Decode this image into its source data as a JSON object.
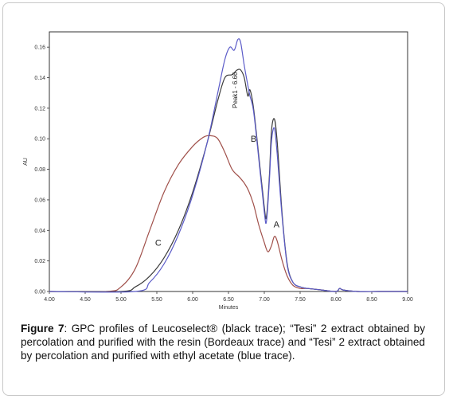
{
  "caption": {
    "label": "Figure 7",
    "text": ": GPC profiles of Leucoselect® (black trace); “Tesi” 2 extract obtained by percolation and purified with the resin (Bordeaux trace) and “Tesi” 2 extract obtained by percolation and purified with ethyl acetate (blue trace)."
  },
  "chart_data": {
    "type": "line",
    "xlabel": "Minutes",
    "ylabel": "AU",
    "xlim": [
      4.0,
      9.0
    ],
    "ylim": [
      0.0,
      0.17
    ],
    "xticks": [
      "4.00",
      "4.50",
      "5.00",
      "5.50",
      "6.00",
      "6.50",
      "7.00",
      "7.50",
      "8.00",
      "8.50",
      "9.00"
    ],
    "yticks": [
      "0.00",
      "0.02",
      "0.04",
      "0.06",
      "0.08",
      "0.10",
      "0.12",
      "0.14",
      "0.16"
    ],
    "grid": false,
    "series": [
      {
        "name": "A",
        "color": "#a0504a",
        "x": [
          4.0,
          4.8,
          5.0,
          5.2,
          5.4,
          5.6,
          5.8,
          6.0,
          6.15,
          6.25,
          6.35,
          6.45,
          6.55,
          6.65,
          6.72,
          6.78,
          6.85,
          6.92,
          7.0,
          7.05,
          7.1,
          7.14,
          7.18,
          7.25,
          7.32,
          7.4,
          7.5,
          7.6,
          7.8,
          8.0,
          8.05,
          8.1,
          8.3,
          8.6,
          9.0
        ],
        "y": [
          0.0,
          0.0,
          0.003,
          0.015,
          0.04,
          0.065,
          0.083,
          0.095,
          0.101,
          0.102,
          0.1,
          0.091,
          0.08,
          0.075,
          0.071,
          0.066,
          0.057,
          0.044,
          0.032,
          0.026,
          0.03,
          0.036,
          0.033,
          0.02,
          0.01,
          0.004,
          0.002,
          0.002,
          0.001,
          0.0,
          0.002,
          0.001,
          0.0,
          0.0,
          0.0
        ]
      },
      {
        "name": "B",
        "color": "#3b3b3b",
        "x": [
          4.0,
          5.0,
          5.2,
          5.4,
          5.6,
          5.8,
          6.0,
          6.2,
          6.35,
          6.45,
          6.55,
          6.62,
          6.67,
          6.72,
          6.77,
          6.8,
          6.85,
          6.92,
          7.0,
          7.03,
          7.07,
          7.1,
          7.14,
          7.18,
          7.25,
          7.32,
          7.4,
          7.5,
          7.6,
          7.8,
          8.0,
          8.05,
          8.1,
          8.3,
          8.6,
          9.0
        ],
        "y": [
          0.0,
          0.0,
          0.003,
          0.01,
          0.022,
          0.04,
          0.065,
          0.097,
          0.125,
          0.14,
          0.142,
          0.145,
          0.145,
          0.14,
          0.128,
          0.132,
          0.12,
          0.09,
          0.055,
          0.049,
          0.075,
          0.105,
          0.113,
          0.098,
          0.05,
          0.018,
          0.006,
          0.003,
          0.002,
          0.001,
          0.0,
          0.002,
          0.001,
          0.0,
          0.0,
          0.0
        ]
      },
      {
        "name": "C",
        "color": "#5b5bc8",
        "x": [
          4.0,
          5.2,
          5.4,
          5.6,
          5.8,
          6.0,
          6.2,
          6.35,
          6.45,
          6.52,
          6.58,
          6.63,
          6.67,
          6.72,
          6.77,
          6.8,
          6.85,
          6.92,
          7.0,
          7.03,
          7.07,
          7.1,
          7.14,
          7.18,
          7.25,
          7.32,
          7.4,
          7.5,
          7.6,
          7.8,
          8.0,
          8.05,
          8.1,
          8.3,
          8.6,
          9.0
        ],
        "y": [
          0.0,
          0.0,
          0.006,
          0.018,
          0.037,
          0.063,
          0.097,
          0.13,
          0.152,
          0.16,
          0.158,
          0.165,
          0.163,
          0.148,
          0.135,
          0.128,
          0.118,
          0.088,
          0.052,
          0.046,
          0.072,
          0.098,
          0.107,
          0.09,
          0.048,
          0.017,
          0.006,
          0.003,
          0.002,
          0.001,
          0.0,
          0.002,
          0.001,
          0.0,
          0.0,
          0.0
        ]
      }
    ],
    "annotations": [
      {
        "text": "A",
        "x": 7.17,
        "y": 0.042
      },
      {
        "text": "B",
        "x": 6.85,
        "y": 0.098
      },
      {
        "text": "C",
        "x": 5.52,
        "y": 0.03
      },
      {
        "text": "Peak1 - 6.66",
        "x": 6.62,
        "y": 0.12
      }
    ]
  }
}
